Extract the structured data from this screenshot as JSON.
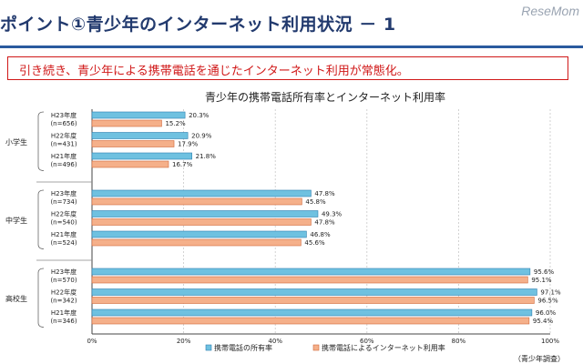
{
  "header": {
    "title": "ポイント①青少年のインターネット利用状況 － 1",
    "logo": "ReseMom",
    "accent_color": "#2a5a9e"
  },
  "callout": {
    "text": "引き続き、青少年による携帯電話を通じたインターネット利用が常態化。",
    "color": "#d01818"
  },
  "chart_data": {
    "type": "bar",
    "orientation": "horizontal",
    "title": "青少年の携帯電話所有率とインターネット利用率",
    "xlim": [
      0,
      100
    ],
    "x_ticks": [
      "0%",
      "20%",
      "40%",
      "60%",
      "80%",
      "100%"
    ],
    "groups": [
      {
        "name": "小学生",
        "rows": [
          {
            "year": "H23年度",
            "n": "(n=656)",
            "values": [
              20.3,
              15.2
            ],
            "labels": [
              "20.3%",
              "15.2%"
            ]
          },
          {
            "year": "H22年度",
            "n": "(n=431)",
            "values": [
              20.9,
              17.9
            ],
            "labels": [
              "20.9%",
              "17.9%"
            ]
          },
          {
            "year": "H21年度",
            "n": "(n=496)",
            "values": [
              21.8,
              16.7
            ],
            "labels": [
              "21.8%",
              "16.7%"
            ]
          }
        ]
      },
      {
        "name": "中学生",
        "rows": [
          {
            "year": "H23年度",
            "n": "(n=734)",
            "values": [
              47.8,
              45.8
            ],
            "labels": [
              "47.8%",
              "45.8%"
            ]
          },
          {
            "year": "H22年度",
            "n": "(n=540)",
            "values": [
              49.3,
              47.8
            ],
            "labels": [
              "49.3%",
              "47.8%"
            ]
          },
          {
            "year": "H21年度",
            "n": "(n=524)",
            "values": [
              46.8,
              45.6
            ],
            "labels": [
              "46.8%",
              "45.6%"
            ]
          }
        ]
      },
      {
        "name": "高校生",
        "rows": [
          {
            "year": "H23年度",
            "n": "(n=570)",
            "values": [
              95.6,
              95.1
            ],
            "labels": [
              "95.6%",
              "95.1%"
            ]
          },
          {
            "year": "H22年度",
            "n": "(n=342)",
            "values": [
              97.1,
              96.5
            ],
            "labels": [
              "97.1%",
              "96.5%"
            ]
          },
          {
            "year": "H21年度",
            "n": "(n=346)",
            "values": [
              96.0,
              95.4
            ],
            "labels": [
              "96.0%",
              "95.4%"
            ]
          }
        ]
      }
    ],
    "series": [
      {
        "name": "携帯電話の所有率",
        "color": "#6fc1e0",
        "border": "#2d7fb0"
      },
      {
        "name": "携帯電話によるインターネット利用率",
        "color": "#f5b08a",
        "border": "#d0683a"
      }
    ],
    "source": "（青少年調査）"
  }
}
